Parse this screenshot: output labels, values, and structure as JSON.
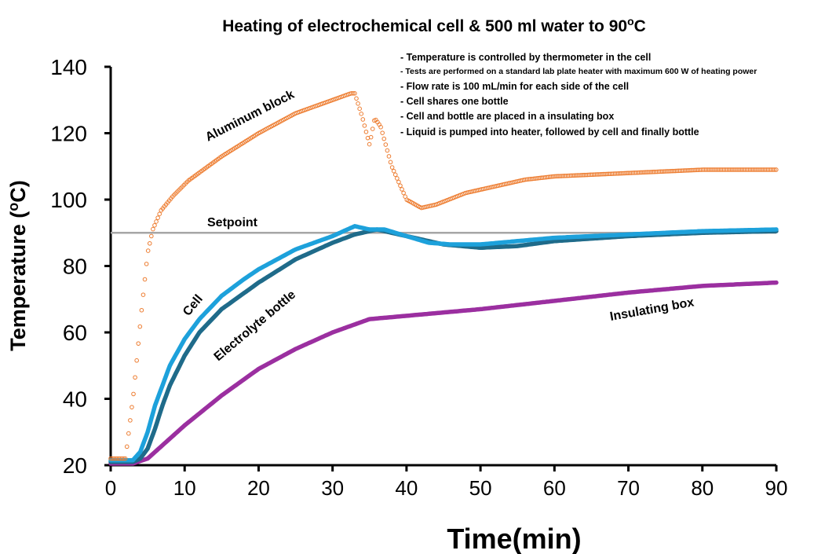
{
  "chart_data": {
    "type": "scatter",
    "title": "Heating of electrochemical cell & 500 ml water to 90",
    "title_unit": "C",
    "title_sup": "o",
    "xlabel": "Time(min)",
    "ylabel": "Temperature (",
    "ylabel_sup": "o",
    "ylabel_end": "C)",
    "xlim": [
      0,
      90
    ],
    "ylim": [
      20,
      140
    ],
    "xticks": [
      "0",
      "10",
      "20",
      "30",
      "40",
      "50",
      "60",
      "70",
      "80",
      "90"
    ],
    "yticks": [
      "20",
      "40",
      "60",
      "80",
      "100",
      "120",
      "140"
    ],
    "setpoint": {
      "label": "Setpoint",
      "value": 90,
      "color": "#A6A6A6"
    },
    "notes": [
      "- Temperature is controlled by thermometer in the cell",
      "- Tests are performed on a standard lab plate heater with maximum 600 W of heating power",
      "- Flow rate is  100 mL/min for each side of the cell",
      "- Cell shares one bottle",
      "- Cell and bottle are placed in a insulating box",
      "- Liquid is pumped into heater, followed by cell and finally bottle"
    ],
    "series": [
      {
        "name": "Aluminum block",
        "color": "#ED7D31",
        "style": "open-circles",
        "x": [
          0,
          2,
          3.1,
          4.1,
          5,
          5.7,
          6.8,
          8.4,
          10.5,
          15,
          20,
          25,
          30,
          32.5,
          33,
          34,
          35,
          35.7,
          36.5,
          38,
          40,
          42,
          44,
          48,
          52,
          56,
          60,
          70,
          80,
          90
        ],
        "y": [
          22,
          22,
          41.8,
          65,
          84,
          91,
          96.7,
          101,
          105.7,
          113,
          120,
          126,
          130,
          132,
          132,
          125,
          116.5,
          124.5,
          122,
          110,
          100,
          97.5,
          98.5,
          102,
          104,
          106,
          107,
          108,
          109,
          109
        ]
      },
      {
        "name": "Cell",
        "color": "#1DA1DB",
        "style": "thick",
        "x": [
          0,
          3,
          4,
          5,
          6,
          7,
          8,
          10,
          12,
          15,
          18,
          20,
          25,
          30,
          32,
          33,
          35,
          37,
          40,
          43,
          46,
          50,
          55,
          60,
          70,
          80,
          90
        ],
        "y": [
          21.5,
          21.5,
          24,
          30,
          38,
          44,
          50,
          58,
          64,
          71,
          76,
          79,
          85,
          89,
          91,
          92,
          91,
          91,
          89,
          87,
          86.5,
          86.5,
          87.5,
          88.5,
          89.5,
          90.5,
          91
        ]
      },
      {
        "name": "Electrolyte bottle",
        "color": "#1F6B8A",
        "style": "thick",
        "x": [
          0,
          3,
          4,
          5,
          6,
          7,
          8,
          10,
          12,
          15,
          20,
          25,
          30,
          33,
          36,
          38,
          40,
          45,
          50,
          55,
          60,
          70,
          80,
          90
        ],
        "y": [
          21,
          21,
          22,
          25,
          31,
          38,
          44,
          53,
          60,
          67,
          75,
          82,
          87,
          89.5,
          91,
          90,
          89,
          86.5,
          85.5,
          86,
          87.5,
          89,
          90,
          90.5
        ]
      },
      {
        "name": "Insulating box",
        "color": "#9B2FA0",
        "style": "thick",
        "x": [
          0,
          3,
          5,
          7,
          10,
          15,
          20,
          25,
          30,
          35,
          40,
          45,
          50,
          60,
          70,
          80,
          90
        ],
        "y": [
          20.5,
          20.5,
          22,
          26,
          32,
          41,
          49,
          55,
          60,
          64,
          65,
          66,
          67,
          69.5,
          72,
          74,
          75
        ]
      }
    ]
  }
}
